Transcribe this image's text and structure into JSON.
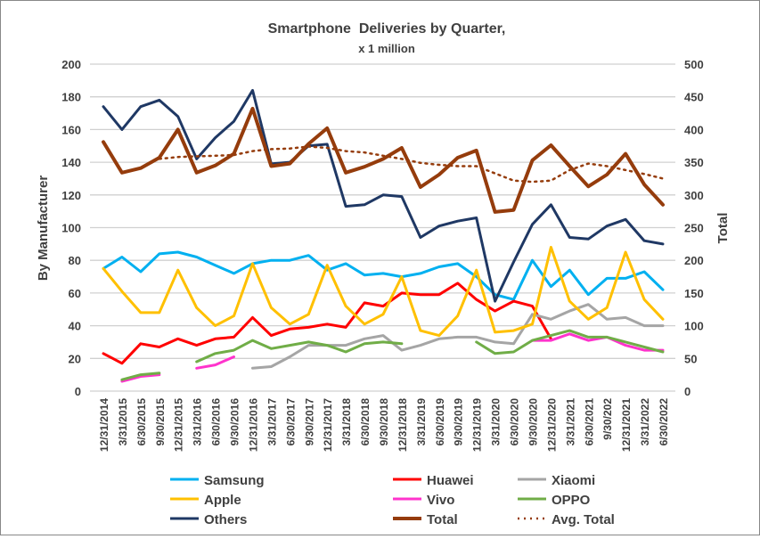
{
  "chart_data": {
    "type": "line",
    "title": "Smartphone  Deliveries by Quarter,",
    "subtitle": "x 1 million",
    "ylabel": "By Manufacturer",
    "y2label": "Total",
    "ylim": [
      0,
      200
    ],
    "y2lim": [
      0,
      500
    ],
    "yticks": [
      0,
      20,
      40,
      60,
      80,
      100,
      120,
      140,
      160,
      180,
      200
    ],
    "y2ticks": [
      0,
      50,
      100,
      150,
      200,
      250,
      300,
      350,
      400,
      450,
      500
    ],
    "grid": true,
    "legend_placement": "bottom",
    "categories": [
      "12/31/2014",
      "3/31/2015",
      "6/30/2015",
      "9/30/2015",
      "12/31/2015",
      "3/31/2016",
      "6/30/2016",
      "9/30/2016",
      "12/31/2016",
      "3/31/2017",
      "6/30/2017",
      "9/30/2017",
      "12/31/2017",
      "3/31/2018",
      "6/30/2018",
      "9/30/2018",
      "12/31/2018",
      "3/31/2019",
      "6/30/2019",
      "9/30/2019",
      "12/31/2019",
      "3/31/2020",
      "6/30/2020",
      "9/30/2020",
      "12/31/2020",
      "3/31/2021",
      "6/30/2021",
      "9/30/202",
      "12/31/2021",
      "3/31/2022",
      "6/30/2022"
    ],
    "series": [
      {
        "name": "Samsung",
        "axis": "left",
        "color": "#00B0F0",
        "style": "solid",
        "values": [
          75,
          82,
          73,
          84,
          85,
          82,
          77,
          72,
          78,
          80,
          80,
          83,
          74,
          78,
          71,
          72,
          70,
          72,
          76,
          78,
          70,
          59,
          56,
          80,
          64,
          74,
          59,
          69,
          69,
          73,
          62
        ]
      },
      {
        "name": "Huawei",
        "axis": "left",
        "color": "#FF0000",
        "style": "solid",
        "values": [
          23,
          17,
          29,
          27,
          32,
          28,
          32,
          33,
          45,
          34,
          38,
          39,
          41,
          39,
          54,
          52,
          60,
          59,
          59,
          66,
          56,
          49,
          55,
          52,
          32,
          null,
          null,
          null,
          null,
          null,
          null
        ]
      },
      {
        "name": "Xiaomi",
        "axis": "left",
        "color": "#A5A5A5",
        "style": "solid",
        "values": [
          null,
          null,
          null,
          null,
          null,
          null,
          null,
          null,
          14,
          15,
          21,
          28,
          28,
          28,
          32,
          34,
          25,
          28,
          32,
          33,
          33,
          30,
          29,
          47,
          44,
          49,
          53,
          44,
          45,
          40,
          40
        ]
      },
      {
        "name": "Apple",
        "axis": "left",
        "color": "#FFC000",
        "style": "solid",
        "values": [
          75,
          61,
          48,
          48,
          74,
          51,
          40,
          46,
          78,
          51,
          41,
          47,
          77,
          52,
          41,
          47,
          70,
          37,
          34,
          46,
          74,
          36,
          37,
          41,
          88,
          55,
          44,
          51,
          85,
          56,
          44
        ]
      },
      {
        "name": "Vivo",
        "axis": "left",
        "color": "#FF33CC",
        "style": "solid",
        "values": [
          null,
          6,
          9,
          10,
          null,
          14,
          16,
          21,
          null,
          null,
          null,
          null,
          null,
          null,
          null,
          null,
          null,
          null,
          null,
          null,
          null,
          null,
          null,
          31,
          31,
          35,
          31,
          33,
          28,
          25,
          25
        ]
      },
      {
        "name": "OPPO",
        "axis": "left",
        "color": "#70AD47",
        "style": "solid",
        "values": [
          null,
          7,
          10,
          11,
          null,
          18,
          23,
          25,
          31,
          26,
          28,
          30,
          28,
          24,
          29,
          30,
          29,
          null,
          null,
          null,
          30,
          23,
          24,
          31,
          34,
          37,
          33,
          33,
          30,
          27,
          24
        ]
      },
      {
        "name": "Others",
        "axis": "left",
        "color": "#1F3864",
        "style": "solid",
        "values": [
          174,
          160,
          174,
          178,
          168,
          142,
          155,
          165,
          184,
          139,
          140,
          150,
          151,
          113,
          114,
          120,
          119,
          94,
          101,
          104,
          106,
          55,
          79,
          102,
          114,
          94,
          93,
          101,
          105,
          92,
          90
        ]
      },
      {
        "name": "Total",
        "axis": "right",
        "color": "#953C0C",
        "style": "thick",
        "values": [
          381,
          334,
          341,
          357,
          400,
          334,
          345,
          363,
          432,
          344,
          348,
          378,
          402,
          334,
          343,
          355,
          372,
          312,
          331,
          357,
          368,
          274,
          277,
          353,
          376,
          344,
          313,
          331,
          363,
          316,
          285
        ]
      },
      {
        "name": "Avg. Total",
        "axis": "right",
        "color": "#953C0C",
        "style": "dotted",
        "values": [
          null,
          null,
          null,
          355,
          358,
          359,
          360,
          361,
          367,
          370,
          371,
          374,
          372,
          367,
          365,
          360,
          355,
          349,
          346,
          344,
          344,
          333,
          322,
          320,
          322,
          338,
          348,
          344,
          338,
          332,
          325
        ]
      }
    ]
  }
}
